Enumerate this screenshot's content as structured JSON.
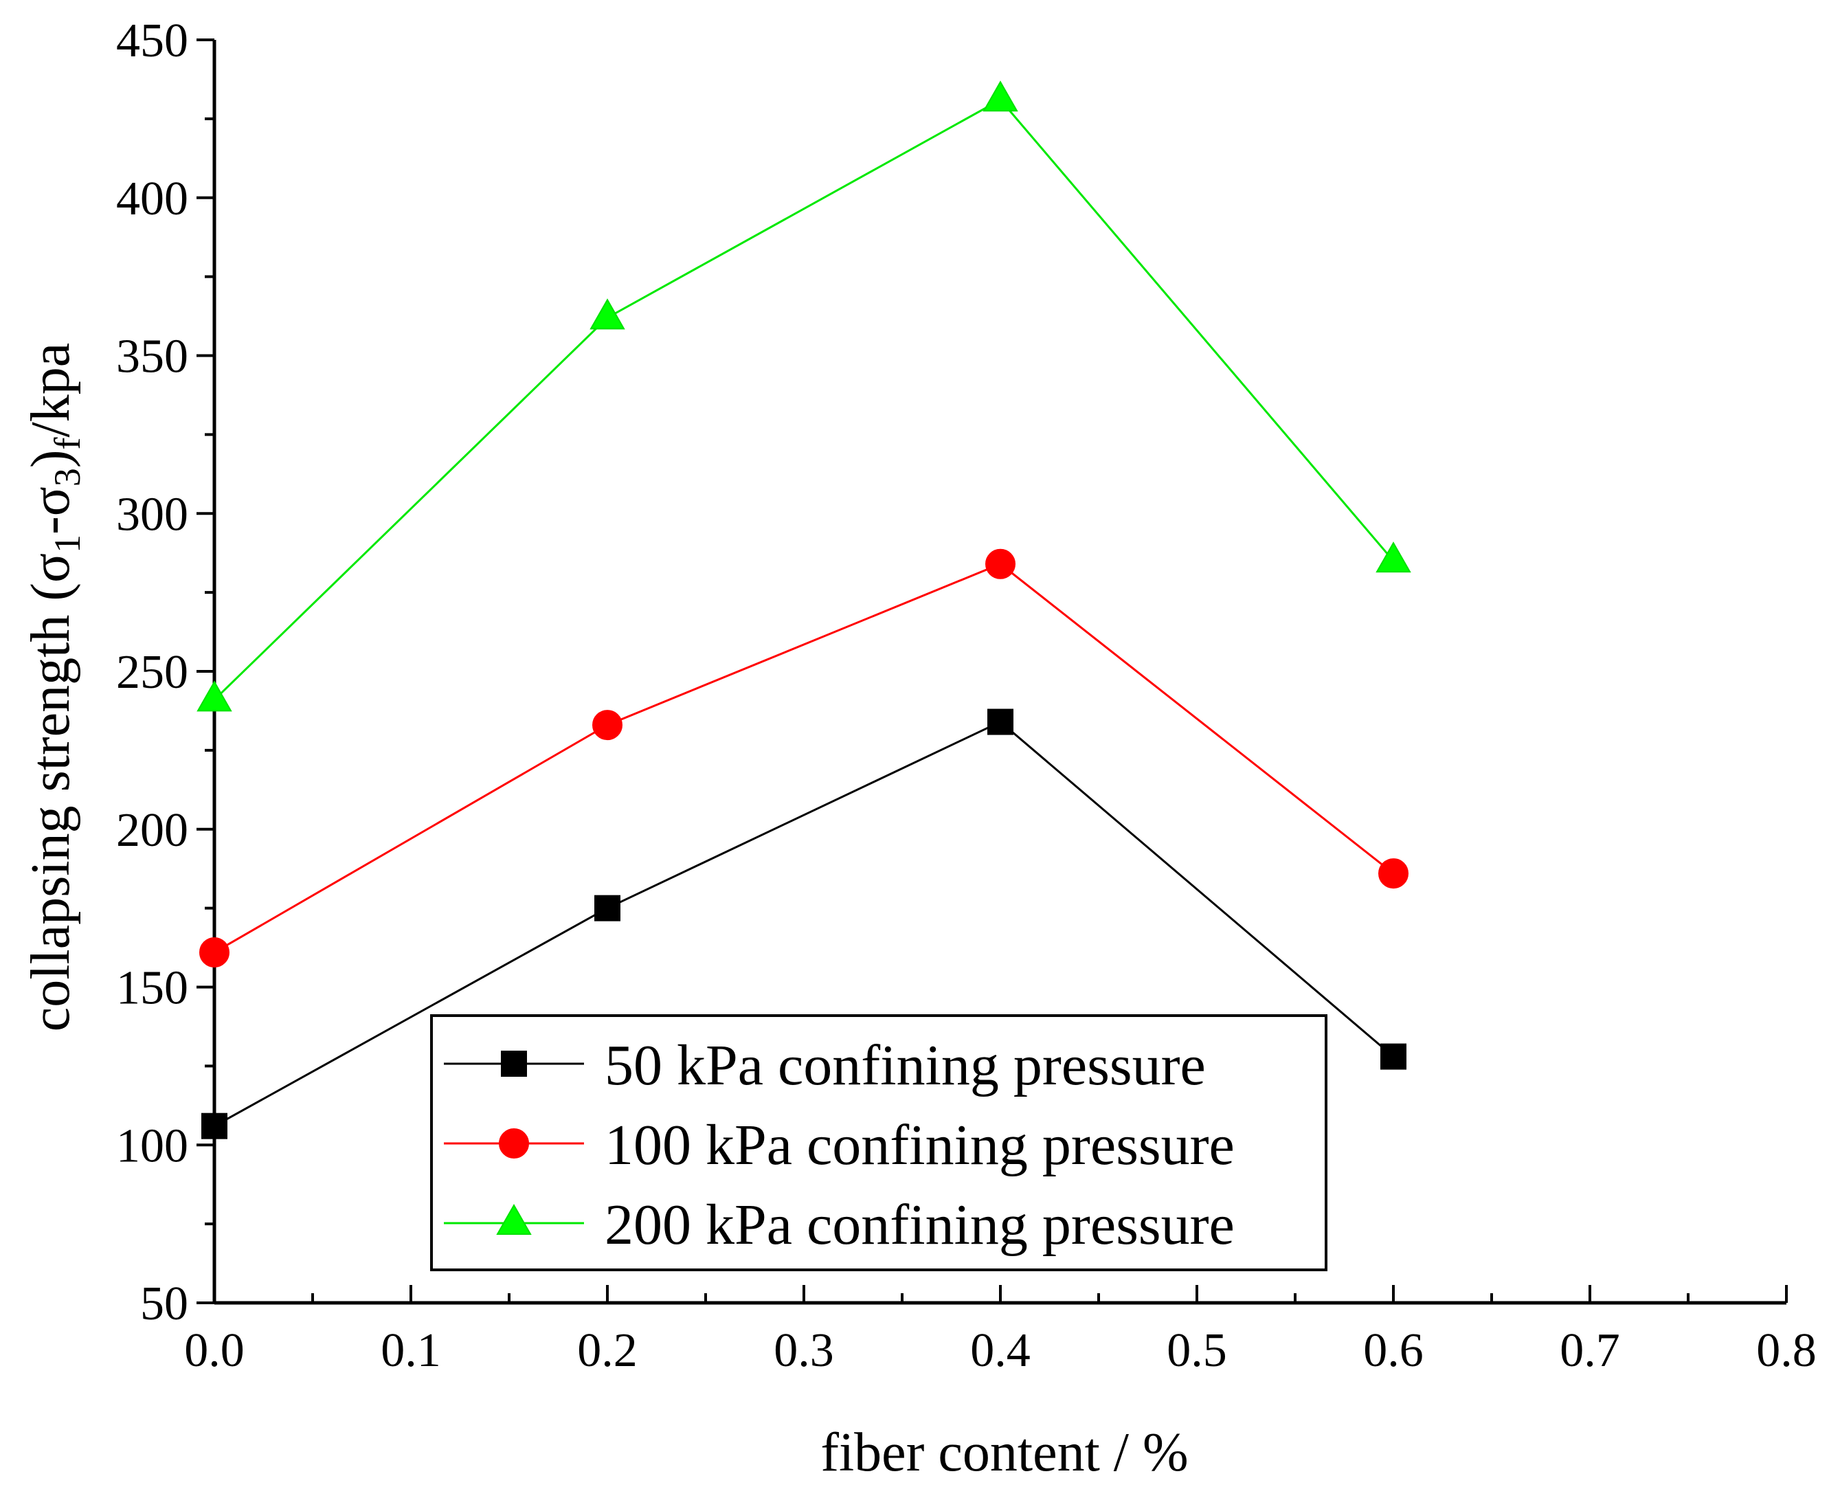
{
  "chart_data": {
    "type": "line",
    "title": "",
    "xlabel": "fiber content / %",
    "ylabel": {
      "prefix": "collapsing strength (",
      "sigma1": "σ",
      "sub1": "1",
      "dash": "-",
      "sigma3": "σ",
      "sub3": "3",
      "close": ")",
      "subf": "f",
      "suffix": "/kpa"
    },
    "xlim": [
      0,
      0.8
    ],
    "ylim": [
      50,
      450
    ],
    "xticks": [
      0.0,
      0.1,
      0.2,
      0.3,
      0.4,
      0.5,
      0.6,
      0.7,
      0.8
    ],
    "xtick_labels": [
      "0.0",
      "0.1",
      "0.2",
      "0.3",
      "0.4",
      "0.5",
      "0.6",
      "0.7",
      "0.8"
    ],
    "yticks": [
      50,
      100,
      150,
      200,
      250,
      300,
      350,
      400,
      450
    ],
    "ytick_labels": [
      "50",
      "100",
      "150",
      "200",
      "250",
      "300",
      "350",
      "400",
      "450"
    ],
    "x": [
      0.0,
      0.2,
      0.4,
      0.6
    ],
    "series": [
      {
        "name": "50 kPa confining pressure",
        "values": [
          106,
          175,
          234,
          128
        ],
        "color": "#000000",
        "marker": "square"
      },
      {
        "name": "100 kPa confining pressure",
        "values": [
          161,
          233,
          284,
          186
        ],
        "color": "#ff0000",
        "marker": "circle"
      },
      {
        "name": "200 kPa confining pressure",
        "values": [
          241,
          362,
          431,
          285
        ],
        "color": "#00ff00",
        "marker": "triangle"
      }
    ],
    "legend_position": "bottom-center",
    "grid": false
  }
}
